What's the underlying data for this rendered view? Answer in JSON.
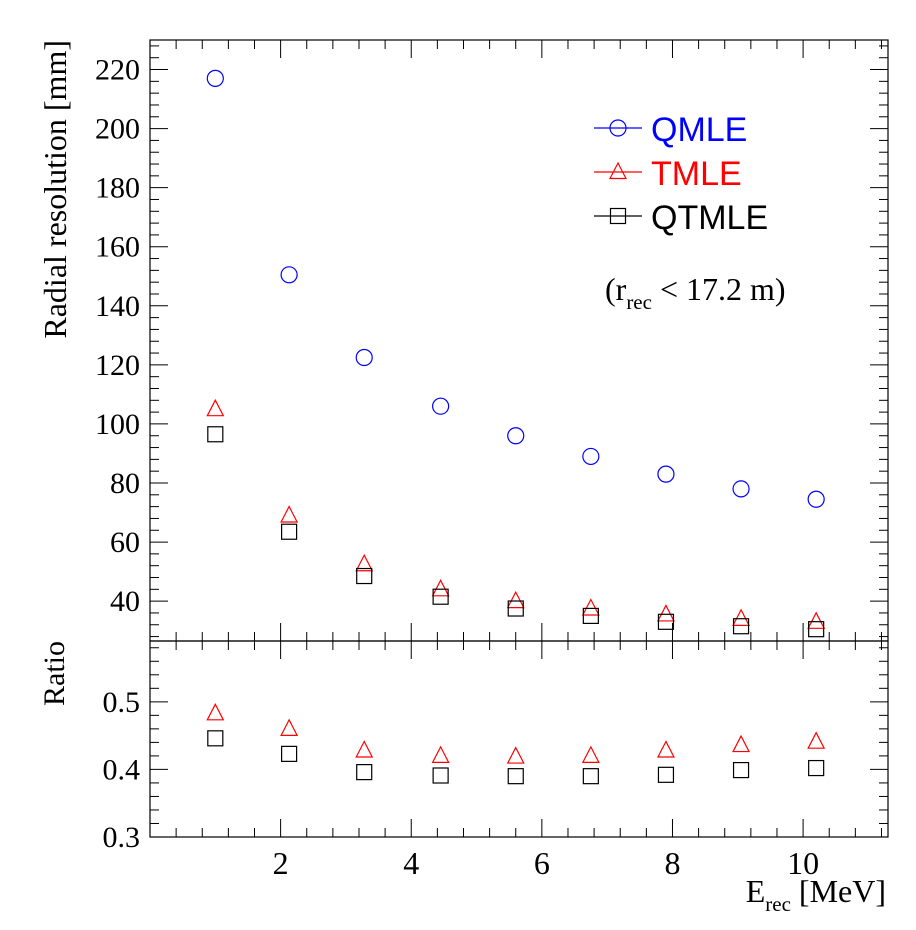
{
  "chart_data": [
    {
      "type": "scatter",
      "ylabel": "Radial resolution [mm]",
      "annotation": {
        "prefix": "(r",
        "subscript": "rec",
        "suffix": " < 17.2 m)"
      },
      "xlim": [
        0,
        11.3
      ],
      "ylim": [
        26.5,
        230
      ],
      "xticks": [
        2,
        4,
        6,
        8,
        10
      ],
      "yticks": [
        40,
        60,
        80,
        100,
        120,
        140,
        160,
        180,
        200,
        220
      ],
      "x": [
        1.0,
        2.13,
        3.28,
        4.45,
        5.6,
        6.75,
        7.9,
        9.05,
        10.2
      ],
      "series": [
        {
          "name": "QMLE",
          "marker": "circle",
          "color": "#0000ff",
          "values": [
            217,
            150.5,
            122.5,
            106,
            96,
            89,
            83,
            78,
            74.5
          ]
        },
        {
          "name": "TMLE",
          "marker": "triangle",
          "color": "#ff0000",
          "values": [
            105,
            69,
            52.5,
            44,
            40,
            37.5,
            35.5,
            34,
            33
          ]
        },
        {
          "name": "QTMLE",
          "marker": "square",
          "color": "#000000",
          "values": [
            96.5,
            63.5,
            48.5,
            41.5,
            37.5,
            35,
            33,
            31.5,
            30.5
          ]
        }
      ]
    },
    {
      "type": "scatter",
      "ylabel": "Ratio",
      "xlabel": {
        "prefix": "E",
        "subscript": "rec",
        "suffix": " [MeV]"
      },
      "xlim": [
        0,
        11.3
      ],
      "ylim": [
        0.3,
        0.59
      ],
      "xticks": [
        2,
        4,
        6,
        8,
        10
      ],
      "yticks": [
        0.3,
        0.4,
        0.5
      ],
      "x": [
        1.0,
        2.13,
        3.28,
        4.45,
        5.6,
        6.75,
        7.9,
        9.05,
        10.2
      ],
      "series": [
        {
          "marker": "triangle",
          "color": "#ff0000",
          "values": [
            0.483,
            0.46,
            0.428,
            0.42,
            0.419,
            0.42,
            0.428,
            0.436,
            0.441
          ]
        },
        {
          "marker": "square",
          "color": "#000000",
          "values": [
            0.446,
            0.423,
            0.396,
            0.391,
            0.39,
            0.39,
            0.392,
            0.399,
            0.402
          ]
        }
      ]
    }
  ]
}
